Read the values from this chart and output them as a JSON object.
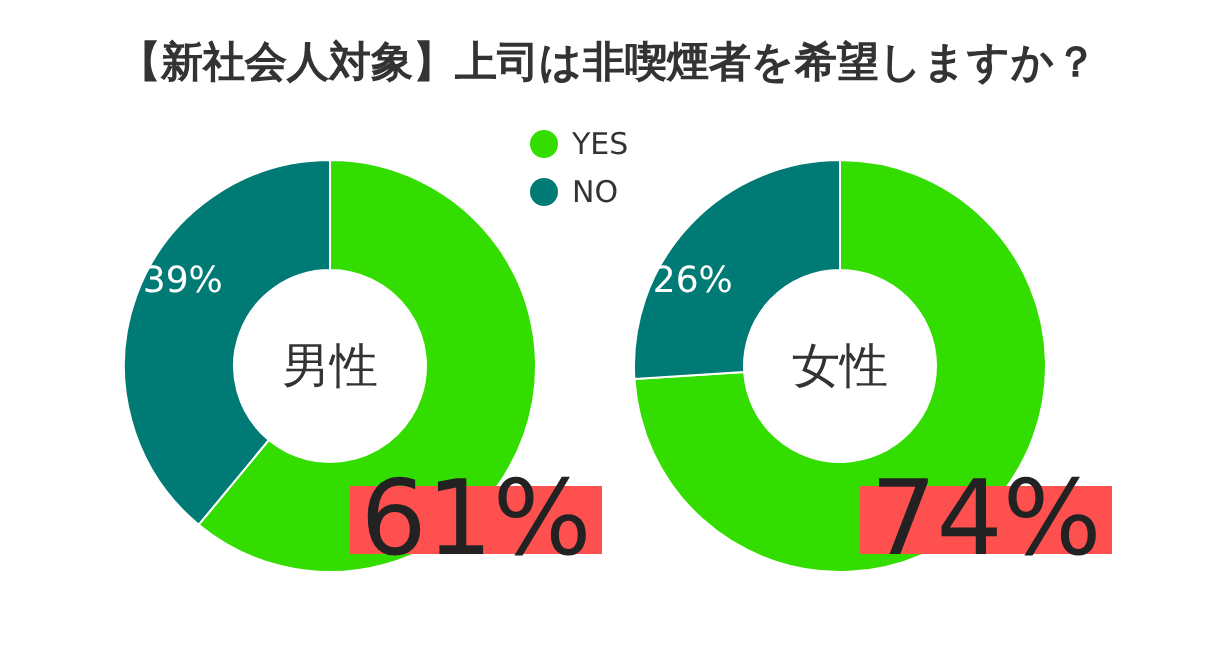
{
  "chart_data": [
    {
      "type": "donut",
      "title": "【新社会人対象】上司は非喫煙者を希望しますか？",
      "categories": [
        "YES",
        "NO"
      ],
      "values": [
        61,
        39
      ],
      "value_labels": [
        "61%",
        "39%"
      ],
      "colors": [
        "#33dd00",
        "#007a74"
      ],
      "legend": "top",
      "annotations": [
        "男性"
      ]
    },
    {
      "type": "donut",
      "values": [
        74,
        26
      ],
      "value_labels": [
        "74%",
        "26%"
      ],
      "colors": [
        "#33dd00",
        "#007a74"
      ],
      "annotations": [
        "女性"
      ]
    }
  ]
}
